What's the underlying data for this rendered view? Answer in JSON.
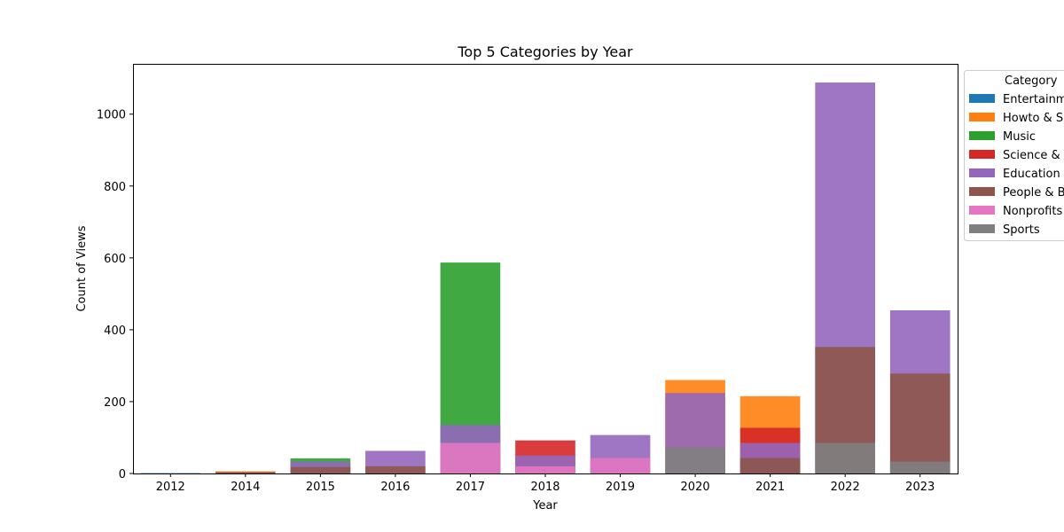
{
  "chart_data": {
    "type": "bar",
    "layout": "overlaid",
    "title": "Top 5 Categories by Year",
    "xlabel": "Year",
    "ylabel": "Count of Views",
    "categories": [
      "2012",
      "2014",
      "2015",
      "2016",
      "2017",
      "2018",
      "2019",
      "2020",
      "2021",
      "2022",
      "2023"
    ],
    "ylim": [
      0,
      1140
    ],
    "yticks": [
      0,
      200,
      400,
      600,
      800,
      1000
    ],
    "grid": false,
    "legend": {
      "title": "Category",
      "placement": "outside-right",
      "entries": [
        "Entertainment",
        "Howto & Style",
        "Music",
        "Science & Technology",
        "Education",
        "People & Blogs",
        "Nonprofits & Activism",
        "Sports"
      ],
      "visible_labels": [
        "Entertainm",
        "Howto & S",
        "Music",
        "Science &",
        "Education",
        "People & B",
        "Nonprofits",
        "Sports"
      ]
    },
    "series": [
      {
        "name": "Entertainment",
        "color": "#1f77b4",
        "values": [
          1,
          0,
          0,
          0,
          0,
          0,
          0,
          0,
          0,
          0,
          0
        ]
      },
      {
        "name": "Howto & Style",
        "color": "#ff7f0e",
        "values": [
          0,
          6,
          0,
          0,
          0,
          0,
          0,
          260,
          215,
          0,
          0
        ]
      },
      {
        "name": "Music",
        "color": "#2ca02c",
        "values": [
          0,
          0,
          42,
          0,
          587,
          0,
          0,
          0,
          0,
          0,
          0
        ]
      },
      {
        "name": "Science & Technology",
        "color": "#d62728",
        "values": [
          0,
          0,
          0,
          0,
          0,
          92,
          0,
          0,
          127,
          0,
          0
        ]
      },
      {
        "name": "Education",
        "color": "#9467bd",
        "values": [
          0,
          0,
          33,
          63,
          135,
          50,
          107,
          224,
          85,
          1088,
          454
        ]
      },
      {
        "name": "People & Blogs",
        "color": "#8c564b",
        "values": [
          0,
          4,
          18,
          20,
          0,
          0,
          0,
          0,
          43,
          352,
          278
        ]
      },
      {
        "name": "Nonprofits & Activism",
        "color": "#e377c2",
        "values": [
          0,
          0,
          0,
          0,
          85,
          20,
          43,
          0,
          0,
          0,
          0
        ]
      },
      {
        "name": "Sports",
        "color": "#7f7f7f",
        "values": [
          0,
          0,
          0,
          0,
          0,
          0,
          0,
          72,
          0,
          85,
          33
        ]
      }
    ]
  }
}
